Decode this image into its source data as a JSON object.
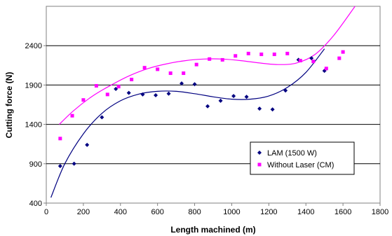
{
  "chart_data": {
    "type": "scatter",
    "title": "",
    "xlabel": "Length machined (m)",
    "ylabel": "Cutting force (N)",
    "xlim": [
      0,
      1800
    ],
    "ylim": [
      400,
      2900
    ],
    "x_ticks": [
      "0",
      "200",
      "400",
      "600",
      "800",
      "1000",
      "1200",
      "1400",
      "1600",
      "1800"
    ],
    "y_ticks": [
      "400",
      "900",
      "1400",
      "1900",
      "2400"
    ],
    "grid": "horizontal",
    "legend_position": "bottom-right",
    "series": [
      {
        "name": "LAM (1500 W)",
        "color": "#000080",
        "marker": "diamond",
        "points": [
          [
            75,
            870
          ],
          [
            150,
            900
          ],
          [
            220,
            1140
          ],
          [
            300,
            1490
          ],
          [
            375,
            1850
          ],
          [
            445,
            1800
          ],
          [
            520,
            1780
          ],
          [
            590,
            1770
          ],
          [
            660,
            1790
          ],
          [
            730,
            1920
          ],
          [
            800,
            1910
          ],
          [
            870,
            1630
          ],
          [
            940,
            1700
          ],
          [
            1010,
            1760
          ],
          [
            1080,
            1750
          ],
          [
            1150,
            1600
          ],
          [
            1220,
            1590
          ],
          [
            1290,
            1830
          ],
          [
            1360,
            2220
          ],
          [
            1430,
            2240
          ],
          [
            1500,
            2080
          ]
        ],
        "trend": [
          [
            25,
            470
          ],
          [
            100,
            900
          ],
          [
            200,
            1280
          ],
          [
            300,
            1540
          ],
          [
            400,
            1700
          ],
          [
            500,
            1785
          ],
          [
            600,
            1820
          ],
          [
            700,
            1820
          ],
          [
            800,
            1790
          ],
          [
            900,
            1750
          ],
          [
            1000,
            1720
          ],
          [
            1100,
            1720
          ],
          [
            1200,
            1760
          ],
          [
            1300,
            1870
          ],
          [
            1400,
            2060
          ],
          [
            1500,
            2360
          ]
        ]
      },
      {
        "name": "Without Laser (CM)",
        "color": "#ff00ff",
        "marker": "square",
        "points": [
          [
            75,
            1220
          ],
          [
            140,
            1510
          ],
          [
            200,
            1710
          ],
          [
            270,
            1890
          ],
          [
            330,
            1780
          ],
          [
            390,
            1880
          ],
          [
            460,
            1970
          ],
          [
            530,
            2120
          ],
          [
            600,
            2100
          ],
          [
            670,
            2050
          ],
          [
            740,
            2050
          ],
          [
            810,
            2160
          ],
          [
            880,
            2230
          ],
          [
            950,
            2220
          ],
          [
            1020,
            2270
          ],
          [
            1090,
            2300
          ],
          [
            1160,
            2290
          ],
          [
            1230,
            2290
          ],
          [
            1300,
            2300
          ],
          [
            1370,
            2210
          ],
          [
            1440,
            2200
          ],
          [
            1510,
            2110
          ],
          [
            1580,
            2240
          ],
          [
            1600,
            2320
          ]
        ],
        "trend": [
          [
            70,
            1400
          ],
          [
            150,
            1580
          ],
          [
            250,
            1760
          ],
          [
            350,
            1900
          ],
          [
            450,
            2020
          ],
          [
            550,
            2110
          ],
          [
            650,
            2170
          ],
          [
            750,
            2210
          ],
          [
            850,
            2230
          ],
          [
            950,
            2230
          ],
          [
            1050,
            2210
          ],
          [
            1150,
            2180
          ],
          [
            1250,
            2160
          ],
          [
            1350,
            2180
          ],
          [
            1450,
            2290
          ],
          [
            1550,
            2530
          ],
          [
            1665,
            2900
          ]
        ]
      }
    ]
  }
}
